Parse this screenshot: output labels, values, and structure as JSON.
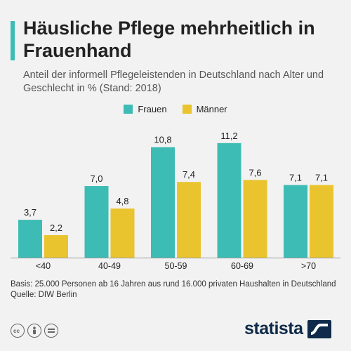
{
  "header": {
    "title": "Häusliche Pflege mehrheitlich in Frauenhand",
    "subtitle": "Anteil der informell Pflegeleistenden in Deutschland nach Alter und Geschlecht in % (Stand: 2018)"
  },
  "colors": {
    "accent": "#3cbcb4",
    "frauen": "#3cbcb4",
    "maenner": "#e9c42e"
  },
  "legend": {
    "frauen": "Frauen",
    "maenner": "Männer"
  },
  "chart_data": {
    "type": "bar",
    "title": "Häusliche Pflege mehrheitlich in Frauenhand",
    "subtitle": "Anteil der informell Pflegeleistenden in Deutschland nach Alter und Geschlecht in % (Stand: 2018)",
    "categories": [
      "<40",
      "40-49",
      "50-59",
      "60-69",
      ">70"
    ],
    "series": [
      {
        "name": "Frauen",
        "values": [
          3.7,
          7.0,
          10.8,
          11.2,
          7.1
        ],
        "labels": [
          "3,7",
          "7,0",
          "10,8",
          "11,2",
          "7,1"
        ]
      },
      {
        "name": "Männer",
        "values": [
          2.2,
          4.8,
          7.4,
          7.6,
          7.1
        ],
        "labels": [
          "2,2",
          "4,8",
          "7,4",
          "7,6",
          "7,1"
        ]
      }
    ],
    "xlabel": "",
    "ylabel": "",
    "ylim": [
      0,
      12
    ],
    "grid": false,
    "legend_position": "top-center"
  },
  "footnote": {
    "basis": "Basis: 25.000 Personen ab 16 Jahren aus rund 16.000 privaten Haushalten in Deutschland",
    "source": "Quelle: DIW Berlin"
  },
  "license_icons": [
    "cc-icon",
    "person-icon",
    "equals-icon"
  ],
  "brand": {
    "name": "statista"
  }
}
